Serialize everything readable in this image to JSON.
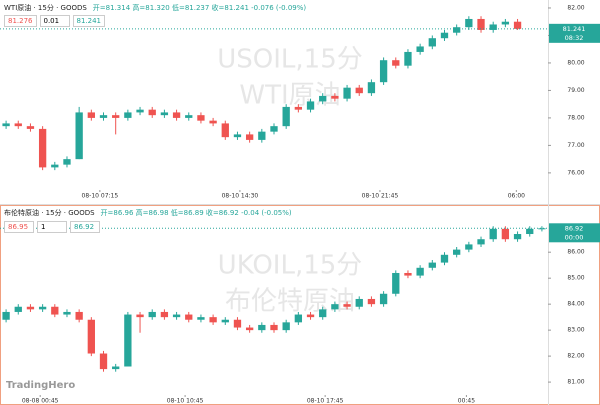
{
  "chart_data": [
    {
      "type": "candlestick",
      "header": "WTI原油 · 15分 · GOODS",
      "ohlc": "开=81.314 高=81.320 低=81.237 收=81.241 -0.076 (-0.09%)",
      "quote_boxes": [
        "81.276",
        "0.01",
        "81.241"
      ],
      "watermark": "USOIL,15分",
      "watermark_name": "WTI原油",
      "last_price": 81.241,
      "last_time": "08:32",
      "up_color": "#26a69a",
      "down_color": "#ef5350",
      "xlim": [
        0,
        45
      ],
      "xticks": [
        {
          "value": 8.2,
          "label": "08-10 07:15"
        },
        {
          "value": 19.7,
          "label": "08-10 14:30"
        },
        {
          "value": 31.2,
          "label": "08-10 21:45"
        },
        {
          "value": 42.4,
          "label": "06:00"
        }
      ],
      "ylim": [
        75.45,
        82.29
      ],
      "yticks": [
        {
          "value": 76,
          "label": "76.00"
        },
        {
          "value": 77,
          "label": "77.00"
        },
        {
          "value": 78,
          "label": "78.00"
        },
        {
          "value": 79,
          "label": "79.00"
        },
        {
          "value": 80,
          "label": "80.00"
        },
        {
          "value": 81,
          "label": "81.00"
        },
        {
          "value": 82,
          "label": "82.00"
        }
      ],
      "candles": [
        [
          77.7,
          77.9,
          77.6,
          77.8
        ],
        [
          77.8,
          77.9,
          77.6,
          77.7
        ],
        [
          77.7,
          77.8,
          77.5,
          77.6
        ],
        [
          77.6,
          77.7,
          76.1,
          76.2
        ],
        [
          76.2,
          76.4,
          76.1,
          76.3
        ],
        [
          76.3,
          76.6,
          76.2,
          76.5
        ],
        [
          76.5,
          78.4,
          76.5,
          78.2
        ],
        [
          78.2,
          78.3,
          77.9,
          78.0
        ],
        [
          78.0,
          78.2,
          77.9,
          78.1
        ],
        [
          78.1,
          78.2,
          77.4,
          78.0
        ],
        [
          78.0,
          78.3,
          77.9,
          78.2
        ],
        [
          78.2,
          78.4,
          78.1,
          78.3
        ],
        [
          78.3,
          78.4,
          78.0,
          78.1
        ],
        [
          78.1,
          78.3,
          78.0,
          78.2
        ],
        [
          78.2,
          78.3,
          77.9,
          78.0
        ],
        [
          78.0,
          78.2,
          77.9,
          78.1
        ],
        [
          78.1,
          78.2,
          77.8,
          77.9
        ],
        [
          77.9,
          78.0,
          77.7,
          77.8
        ],
        [
          77.8,
          77.9,
          77.2,
          77.3
        ],
        [
          77.3,
          77.5,
          77.2,
          77.4
        ],
        [
          77.4,
          77.5,
          77.1,
          77.2
        ],
        [
          77.2,
          77.6,
          77.1,
          77.5
        ],
        [
          77.5,
          77.8,
          77.4,
          77.7
        ],
        [
          77.7,
          78.5,
          77.6,
          78.4
        ],
        [
          78.4,
          78.5,
          78.2,
          78.3
        ],
        [
          78.3,
          78.7,
          78.2,
          78.6
        ],
        [
          78.6,
          78.9,
          78.5,
          78.8
        ],
        [
          78.8,
          78.9,
          78.6,
          78.7
        ],
        [
          78.7,
          79.2,
          78.6,
          79.1
        ],
        [
          79.1,
          79.2,
          78.8,
          78.9
        ],
        [
          78.9,
          79.4,
          78.8,
          79.3
        ],
        [
          79.3,
          80.2,
          79.2,
          80.1
        ],
        [
          80.1,
          80.2,
          79.8,
          79.9
        ],
        [
          79.9,
          80.5,
          79.8,
          80.4
        ],
        [
          80.4,
          80.7,
          80.3,
          80.6
        ],
        [
          80.6,
          81.0,
          80.5,
          80.9
        ],
        [
          80.9,
          81.2,
          80.8,
          81.1
        ],
        [
          81.1,
          81.4,
          81.0,
          81.3
        ],
        [
          81.3,
          81.7,
          81.2,
          81.6
        ],
        [
          81.6,
          81.7,
          81.1,
          81.2
        ],
        [
          81.2,
          81.5,
          81.1,
          81.4
        ],
        [
          81.4,
          81.6,
          81.3,
          81.5
        ],
        [
          81.5,
          81.6,
          81.2,
          81.24
        ]
      ]
    },
    {
      "type": "candlestick",
      "header": "布伦特原油 · 15分 · GOODS",
      "ohlc": "开=86.96 高=86.98 低=86.89 收=86.92 -0.04 (-0.05%)",
      "quote_boxes": [
        "86.95",
        "1",
        "86.92"
      ],
      "watermark": "UKOIL,15分",
      "watermark_name": "布伦特原油",
      "last_price": 86.92,
      "last_time": "00:00",
      "up_color": "#26a69a",
      "down_color": "#ef5350",
      "xlim": [
        0,
        45
      ],
      "xticks": [
        {
          "value": 3.3,
          "label": "08-08 00:45"
        },
        {
          "value": 15.2,
          "label": "08-10 10:45"
        },
        {
          "value": 26.7,
          "label": "08-10 17:45"
        },
        {
          "value": 38.3,
          "label": "00:45"
        }
      ],
      "ylim": [
        80.58,
        87.74
      ],
      "yticks": [
        {
          "value": 81,
          "label": "81.00"
        },
        {
          "value": 82,
          "label": "82.00"
        },
        {
          "value": 83,
          "label": "83.00"
        },
        {
          "value": 84,
          "label": "84.00"
        },
        {
          "value": 85,
          "label": "85.00"
        },
        {
          "value": 86,
          "label": "86.00"
        }
      ],
      "candles": [
        [
          83.4,
          83.8,
          83.3,
          83.7
        ],
        [
          83.7,
          84.0,
          83.6,
          83.9
        ],
        [
          83.9,
          84.0,
          83.7,
          83.8
        ],
        [
          83.8,
          84.0,
          83.7,
          83.9
        ],
        [
          83.9,
          84.0,
          83.5,
          83.6
        ],
        [
          83.6,
          83.8,
          83.5,
          83.7
        ],
        [
          83.7,
          83.8,
          83.3,
          83.4
        ],
        [
          83.4,
          83.5,
          82.0,
          82.1
        ],
        [
          82.1,
          82.2,
          81.4,
          81.5
        ],
        [
          81.5,
          81.7,
          81.4,
          81.6
        ],
        [
          81.6,
          83.7,
          81.6,
          83.6
        ],
        [
          83.6,
          83.7,
          82.9,
          83.5
        ],
        [
          83.5,
          83.8,
          83.4,
          83.7
        ],
        [
          83.7,
          83.8,
          83.4,
          83.5
        ],
        [
          83.5,
          83.7,
          83.4,
          83.6
        ],
        [
          83.6,
          83.7,
          83.3,
          83.4
        ],
        [
          83.4,
          83.6,
          83.3,
          83.5
        ],
        [
          83.5,
          83.6,
          83.2,
          83.3
        ],
        [
          83.3,
          83.5,
          83.2,
          83.4
        ],
        [
          83.4,
          83.5,
          83.0,
          83.1
        ],
        [
          83.1,
          83.2,
          82.9,
          83.0
        ],
        [
          83.0,
          83.3,
          82.9,
          83.2
        ],
        [
          83.2,
          83.3,
          82.9,
          83.0
        ],
        [
          83.0,
          83.4,
          82.9,
          83.3
        ],
        [
          83.3,
          83.7,
          83.2,
          83.6
        ],
        [
          83.6,
          83.7,
          83.4,
          83.5
        ],
        [
          83.5,
          83.9,
          83.4,
          83.8
        ],
        [
          83.8,
          84.1,
          83.7,
          84.0
        ],
        [
          84.0,
          84.1,
          83.8,
          83.9
        ],
        [
          83.9,
          84.3,
          83.8,
          84.2
        ],
        [
          84.2,
          84.3,
          83.9,
          84.0
        ],
        [
          84.0,
          84.5,
          83.9,
          84.4
        ],
        [
          84.4,
          85.3,
          84.3,
          85.2
        ],
        [
          85.2,
          85.3,
          85.0,
          85.1
        ],
        [
          85.1,
          85.5,
          85.0,
          85.4
        ],
        [
          85.4,
          85.7,
          85.3,
          85.6
        ],
        [
          85.6,
          86.0,
          85.5,
          85.9
        ],
        [
          85.9,
          86.2,
          85.8,
          86.1
        ],
        [
          86.1,
          86.4,
          86.0,
          86.3
        ],
        [
          86.3,
          86.6,
          86.2,
          86.5
        ],
        [
          86.5,
          87.0,
          86.4,
          86.9
        ],
        [
          86.9,
          87.0,
          86.4,
          86.5
        ],
        [
          86.5,
          86.8,
          86.4,
          86.7
        ],
        [
          86.7,
          87.0,
          86.6,
          86.9
        ],
        [
          86.9,
          87.0,
          86.8,
          86.92
        ]
      ]
    }
  ],
  "brand": "TradingHero"
}
